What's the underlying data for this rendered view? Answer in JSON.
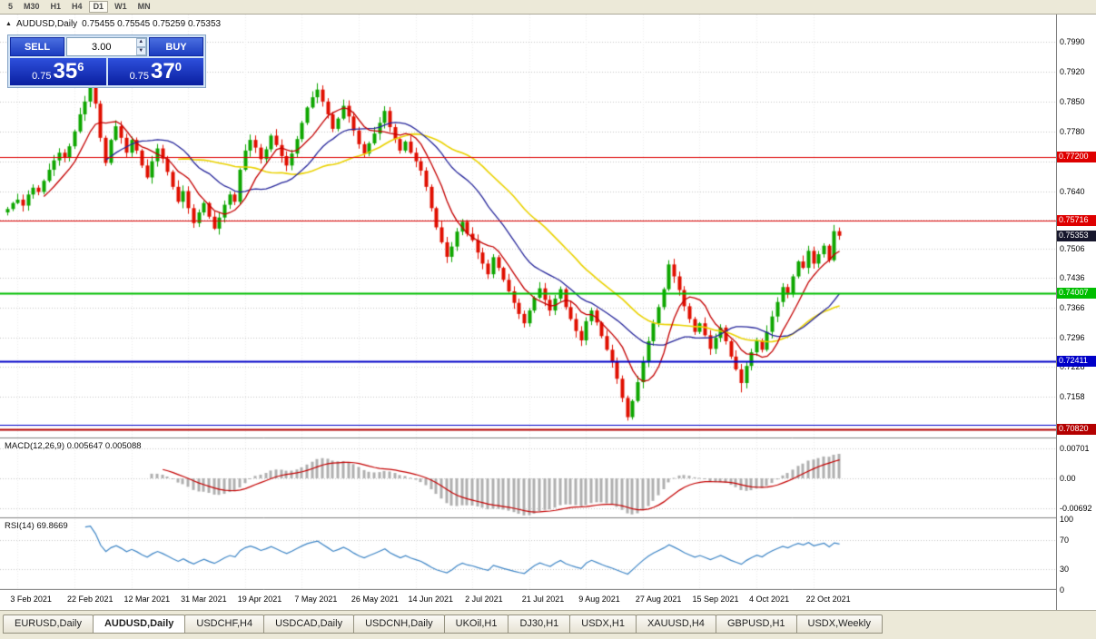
{
  "toolbar": {
    "timeframes": [
      "5",
      "M30",
      "H1",
      "H4",
      "D1",
      "W1",
      "MN"
    ],
    "active_timeframe": "D1"
  },
  "chart": {
    "title": "AUDUSD,Daily",
    "ohlc_text": "0.75455 0.75545 0.75259 0.75353"
  },
  "trade_panel": {
    "sell_label": "SELL",
    "buy_label": "BUY",
    "volume": "3.00",
    "sell_price": {
      "prefix": "0.75",
      "big": "35",
      "sup": "6"
    },
    "buy_price": {
      "prefix": "0.75",
      "big": "37",
      "sup": "0"
    }
  },
  "macd": {
    "label_text": "MACD(12,26,9) 0.005647 0.005088",
    "ticks": [
      {
        "label": "0.00701",
        "value": 0.00701
      },
      {
        "label": "0.00",
        "value": 0
      },
      {
        "label": "-0.00692",
        "value": -0.00692
      }
    ]
  },
  "rsi": {
    "label_text": "RSI(14) 69.8669",
    "ticks": [
      100,
      70,
      30,
      0
    ],
    "levels": [
      70,
      30
    ]
  },
  "price_axis": {
    "ticks": [
      {
        "label": "0.7990",
        "value": 0.799
      },
      {
        "label": "0.7920",
        "value": 0.792
      },
      {
        "label": "0.7850",
        "value": 0.785
      },
      {
        "label": "0.7780",
        "value": 0.778
      },
      {
        "label": "0.7640",
        "value": 0.764
      },
      {
        "label": "0.7506",
        "value": 0.7506
      },
      {
        "label": "0.7436",
        "value": 0.7436
      },
      {
        "label": "0.7366",
        "value": 0.7366
      },
      {
        "label": "0.7296",
        "value": 0.7296
      },
      {
        "label": "0.7228",
        "value": 0.7228
      },
      {
        "label": "0.7158",
        "value": 0.7158
      }
    ],
    "grid_extra": [
      0.771,
      0.7573
    ],
    "current": {
      "label": "0.75353",
      "value": 0.75353
    }
  },
  "levels": [
    {
      "value": 0.772,
      "label": "0.77200",
      "color": "#DE0000",
      "width": 1.2
    },
    {
      "value": 0.75716,
      "label": "0.75716",
      "color": "#DE0000",
      "width": 1.2
    },
    {
      "value": 0.74007,
      "label": "0.74007",
      "color": "#00BE00",
      "width": 1.8
    },
    {
      "value": 0.72411,
      "label": "0.72411",
      "color": "#0000C8",
      "width": 1.8
    },
    {
      "value": 0.7093,
      "label": null,
      "color": "#0000C8",
      "width": 1.2
    },
    {
      "value": 0.7082,
      "label": "0.70820",
      "color": "#B40000",
      "width": 2.2
    }
  ],
  "dates": [
    {
      "label": "3 Feb 2021",
      "index": 2
    },
    {
      "label": "22 Feb 2021",
      "index": 13
    },
    {
      "label": "12 Mar 2021",
      "index": 24
    },
    {
      "label": "31 Mar 2021",
      "index": 35
    },
    {
      "label": "19 Apr 2021",
      "index": 46
    },
    {
      "label": "7 May 2021",
      "index": 57
    },
    {
      "label": "26 May 2021",
      "index": 68
    },
    {
      "label": "14 Jun 2021",
      "index": 79
    },
    {
      "label": "2 Jul 2021",
      "index": 90
    },
    {
      "label": "21 Jul 2021",
      "index": 101
    },
    {
      "label": "9 Aug 2021",
      "index": 112
    },
    {
      "label": "27 Aug 2021",
      "index": 123
    },
    {
      "label": "15 Sep 2021",
      "index": 134
    },
    {
      "label": "4 Oct 2021",
      "index": 145
    },
    {
      "label": "22 Oct 2021",
      "index": 156
    }
  ],
  "tabs": {
    "items": [
      "EURUSD,Daily",
      "AUDUSD,Daily",
      "USDCHF,H4",
      "USDCAD,Daily",
      "USDCNH,Daily",
      "UKOil,H1",
      "DJ30,H1",
      "USDX,H1",
      "XAUUSD,H4",
      "GBPUSD,H1",
      "USDX,Weekly"
    ],
    "active_index": 1
  },
  "colors": {
    "up": "#0EA600",
    "down": "#E00F00",
    "ma_yellow": "#EAD200",
    "ma_blue": "#26269B",
    "ma_red": "#C40000",
    "macd_hist": "#B0B0B0",
    "macd_signal": "#C40000",
    "rsi": "#3D85C6",
    "grid": "#C6C6C6",
    "grid_v": "#ECECEC",
    "pane_border": "#808080",
    "current_bg": "#16162C"
  },
  "chart_data": {
    "type": "candlestick",
    "symbol": "AUDUSD",
    "timeframe": "Daily",
    "ohlc_header": {
      "open": "0.75455",
      "high": "0.75545",
      "low": "0.75259",
      "close": "0.75353"
    },
    "first_open": 0.759,
    "closes": [
      0.7598,
      0.7612,
      0.762,
      0.7606,
      0.7632,
      0.7648,
      0.7638,
      0.7664,
      0.769,
      0.7712,
      0.773,
      0.7718,
      0.7745,
      0.778,
      0.782,
      0.785,
      0.7885,
      0.7845,
      0.7765,
      0.7706,
      0.776,
      0.7792,
      0.7765,
      0.773,
      0.776,
      0.7735,
      0.77,
      0.7672,
      0.771,
      0.774,
      0.7716,
      0.7685,
      0.765,
      0.7615,
      0.764,
      0.76,
      0.7565,
      0.759,
      0.7612,
      0.758,
      0.7552,
      0.7578,
      0.7608,
      0.7632,
      0.7615,
      0.769,
      0.7735,
      0.776,
      0.7742,
      0.7715,
      0.7738,
      0.777,
      0.7748,
      0.7722,
      0.77,
      0.7728,
      0.7762,
      0.78,
      0.7836,
      0.786,
      0.7878,
      0.785,
      0.782,
      0.7786,
      0.781,
      0.784,
      0.7815,
      0.7782,
      0.775,
      0.7728,
      0.7752,
      0.7775,
      0.78,
      0.7828,
      0.779,
      0.7762,
      0.7735,
      0.7756,
      0.773,
      0.771,
      0.7688,
      0.765,
      0.76,
      0.7555,
      0.752,
      0.7486,
      0.751,
      0.7545,
      0.7568,
      0.754,
      0.7525,
      0.7496,
      0.747,
      0.7445,
      0.7485,
      0.746,
      0.7432,
      0.7405,
      0.7378,
      0.7352,
      0.733,
      0.736,
      0.739,
      0.7412,
      0.7385,
      0.736,
      0.7388,
      0.741,
      0.7368,
      0.734,
      0.7312,
      0.729,
      0.7335,
      0.736,
      0.7332,
      0.73,
      0.7268,
      0.724,
      0.72,
      0.7155,
      0.711,
      0.7148,
      0.7192,
      0.724,
      0.7288,
      0.733,
      0.7368,
      0.741,
      0.7468,
      0.744,
      0.7408,
      0.737,
      0.734,
      0.731,
      0.733,
      0.7302,
      0.727,
      0.7296,
      0.732,
      0.7288,
      0.7252,
      0.7222,
      0.719,
      0.723,
      0.7262,
      0.729,
      0.7268,
      0.731,
      0.7346,
      0.738,
      0.7415,
      0.7398,
      0.744,
      0.7475,
      0.746,
      0.75,
      0.747,
      0.7492,
      0.7512,
      0.7478,
      0.7546,
      0.75353
    ],
    "wick_overrides": {
      "16": {
        "h": 0.7898
      },
      "60": {
        "h": 0.7893
      },
      "120": {
        "l": 0.7102
      },
      "128": {
        "h": 0.7478
      },
      "142": {
        "l": 0.7168
      },
      "161": {
        "h": 0.75545,
        "l": 0.75259
      }
    },
    "ma_periods": {
      "yellow": 34,
      "blue": 20,
      "red": 8
    }
  }
}
